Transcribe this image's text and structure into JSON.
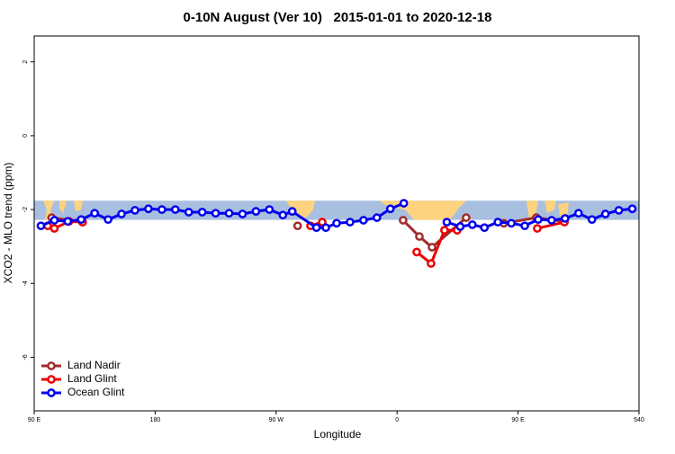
{
  "chart_data": {
    "type": "line",
    "title": "0-10N August (Ver 10)   2015-01-01 to 2020-12-18",
    "x_label": "Longitude",
    "y_label": "XCO2 - MLO trend (ppm)",
    "xlim": [
      90,
      540
    ],
    "ylim": [
      -7.45,
      2.7
    ],
    "xticks": [
      {
        "value": 90,
        "label": "90 E"
      },
      180,
      {
        "value": 270,
        "label": "90 W"
      },
      {
        "value": 360,
        "label": "0"
      },
      {
        "value": 450,
        "label": "90 E"
      },
      540
    ],
    "yticks": [
      2,
      0,
      -2,
      -4,
      -6
    ],
    "band": [
      -2.28,
      -1.76
    ],
    "band_color": "#a8bfe0",
    "legend": "bottom-left",
    "series": [
      {
        "name": "Land Nadir",
        "color": "#a02c2c",
        "x": [
          103,
          126,
          200,
          286,
          330,
          364.5,
          376.6,
          386,
          411.4,
          425,
          439.5,
          463.6,
          484.5
        ],
        "values": [
          -2.22,
          -2.34,
          null,
          -2.44,
          null,
          -2.29,
          -2.73,
          -3.02,
          -2.22,
          null,
          -2.37,
          -2.22,
          -2.32
        ]
      },
      {
        "name": "Land Glint",
        "color": "#ee0000",
        "x": [
          100,
          105,
          116,
          126,
          200,
          295.6,
          304.3,
          340,
          374.6,
          385.3,
          395.3,
          404.7,
          430,
          464.3,
          484.5
        ],
        "values": [
          -2.44,
          -2.51,
          -2.32,
          -2.34,
          null,
          -2.44,
          -2.34,
          null,
          -3.15,
          -3.46,
          -2.56,
          -2.56,
          null,
          -2.51,
          -2.34
        ]
      },
      {
        "name": "Ocean Glint",
        "color": "#0000ee",
        "x": [
          95,
          105,
          115,
          125,
          135,
          145,
          155,
          165,
          175,
          185,
          195,
          205,
          215,
          225,
          235,
          245,
          255,
          265,
          275,
          282,
          300,
          307,
          315,
          325,
          335,
          345,
          355,
          365,
          380,
          397,
          407,
          416,
          425,
          435,
          445,
          455,
          465,
          475,
          485,
          495,
          505,
          515,
          525,
          535
        ],
        "values": [
          -2.44,
          -2.29,
          -2.32,
          -2.27,
          -2.1,
          -2.27,
          -2.12,
          -2.02,
          -1.98,
          -2.0,
          -2.0,
          -2.07,
          -2.07,
          -2.1,
          -2.1,
          -2.12,
          -2.05,
          -2.0,
          -2.15,
          -2.05,
          -2.49,
          -2.49,
          -2.37,
          -2.34,
          -2.29,
          -2.22,
          -1.98,
          -1.83,
          null,
          -2.34,
          -2.46,
          -2.41,
          -2.49,
          -2.34,
          -2.37,
          -2.44,
          -2.27,
          -2.29,
          -2.24,
          -2.1,
          -2.27,
          -2.12,
          -2.02,
          -1.98
        ]
      }
    ]
  }
}
